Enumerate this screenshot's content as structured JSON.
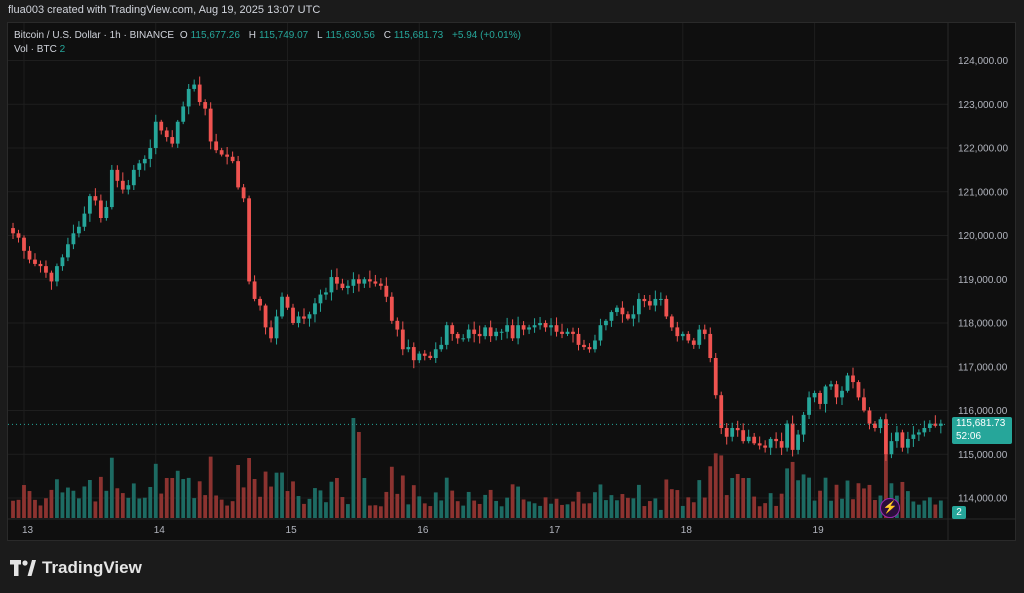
{
  "header": {
    "credit": "flua003 created with TradingView.com, Aug 19, 2025 13:07 UTC"
  },
  "legend": {
    "symbol": "Bitcoin / U.S. Dollar · 1h · BINANCE",
    "open_label": "O",
    "open": "115,677.26",
    "high_label": "H",
    "high": "115,749.07",
    "low_label": "L",
    "low": "115,630.56",
    "close_label": "C",
    "close": "115,681.73",
    "change": "+5.94 (+0.01%)",
    "volume_label": "Vol · BTC",
    "volume": "2"
  },
  "price_badge": {
    "price": "115,681.73",
    "countdown": "52:06"
  },
  "volume_badge": {
    "value": "2"
  },
  "brand": {
    "name": "TradingView",
    "icon": "tradingview-logo-icon"
  },
  "chart_data": {
    "type": "candlestick",
    "title": "Bitcoin / U.S. Dollar · 1h · BINANCE",
    "y_axis": {
      "range": [
        113500,
        124500
      ],
      "ticks": [
        114000,
        115000,
        116000,
        117000,
        118000,
        119000,
        120000,
        121000,
        122000,
        123000,
        124000
      ],
      "tick_labels": [
        "114,000.00",
        "115,000.00",
        "116,000.00",
        "117,000.00",
        "118,000.00",
        "119,000.00",
        "120,000.00",
        "121,000.00",
        "122,000.00",
        "123,000.00",
        "124,000.00"
      ]
    },
    "x_axis": {
      "tick_labels": [
        "13",
        "14",
        "15",
        "16",
        "17",
        "18",
        "19"
      ],
      "tick_hours": [
        0,
        24,
        48,
        72,
        96,
        120,
        144
      ]
    },
    "start_hour": -2,
    "last_price": 115681.73,
    "colors": {
      "up": "#26a69a",
      "down": "#ef5350",
      "up_vol": "#1d6b63",
      "down_vol": "#8c3330",
      "last_line": "#26a69a"
    },
    "grid": true,
    "close": [
      120050,
      119950,
      119650,
      119450,
      119350,
      119300,
      119150,
      118950,
      119300,
      119500,
      119800,
      120050,
      120200,
      120500,
      120900,
      120800,
      120400,
      120650,
      121500,
      121250,
      121050,
      121150,
      121500,
      121650,
      121750,
      122000,
      122600,
      122400,
      122250,
      122100,
      122600,
      122950,
      123350,
      123450,
      123050,
      122900,
      122150,
      121950,
      121850,
      121800,
      121700,
      121100,
      120850,
      118950,
      118550,
      118400,
      117900,
      117650,
      118150,
      118600,
      118350,
      118000,
      118150,
      118100,
      118200,
      118450,
      118650,
      118700,
      119050,
      118900,
      118800,
      118850,
      119000,
      118900,
      119000,
      118950,
      118900,
      118850,
      118600,
      118050,
      117850,
      117400,
      117450,
      117150,
      117300,
      117250,
      117200,
      117400,
      117500,
      117950,
      117750,
      117650,
      117650,
      117850,
      117750,
      117700,
      117900,
      117700,
      117800,
      117800,
      117950,
      117650,
      117950,
      117850,
      117900,
      117950,
      118000,
      117900,
      117950,
      117800,
      117750,
      117800,
      117750,
      117500,
      117450,
      117400,
      117600,
      117950,
      118050,
      118250,
      118350,
      118200,
      118100,
      118200,
      118550,
      118500,
      118400,
      118550,
      118550,
      118150,
      117900,
      117700,
      117750,
      117600,
      117500,
      117850,
      117750,
      117200,
      116350,
      115600,
      115400,
      115600,
      115550,
      115300,
      115400,
      115250,
      115200,
      115150,
      115350,
      115300,
      115150,
      115700,
      115100,
      115450,
      115900,
      116300,
      116400,
      116150,
      116550,
      116600,
      116300,
      116450,
      116800,
      116650,
      116300,
      116000,
      115700,
      115600,
      115800,
      115000,
      115300,
      115500,
      115150,
      115350,
      115450,
      115500,
      115600,
      115700,
      115650,
      115700
    ]
  }
}
